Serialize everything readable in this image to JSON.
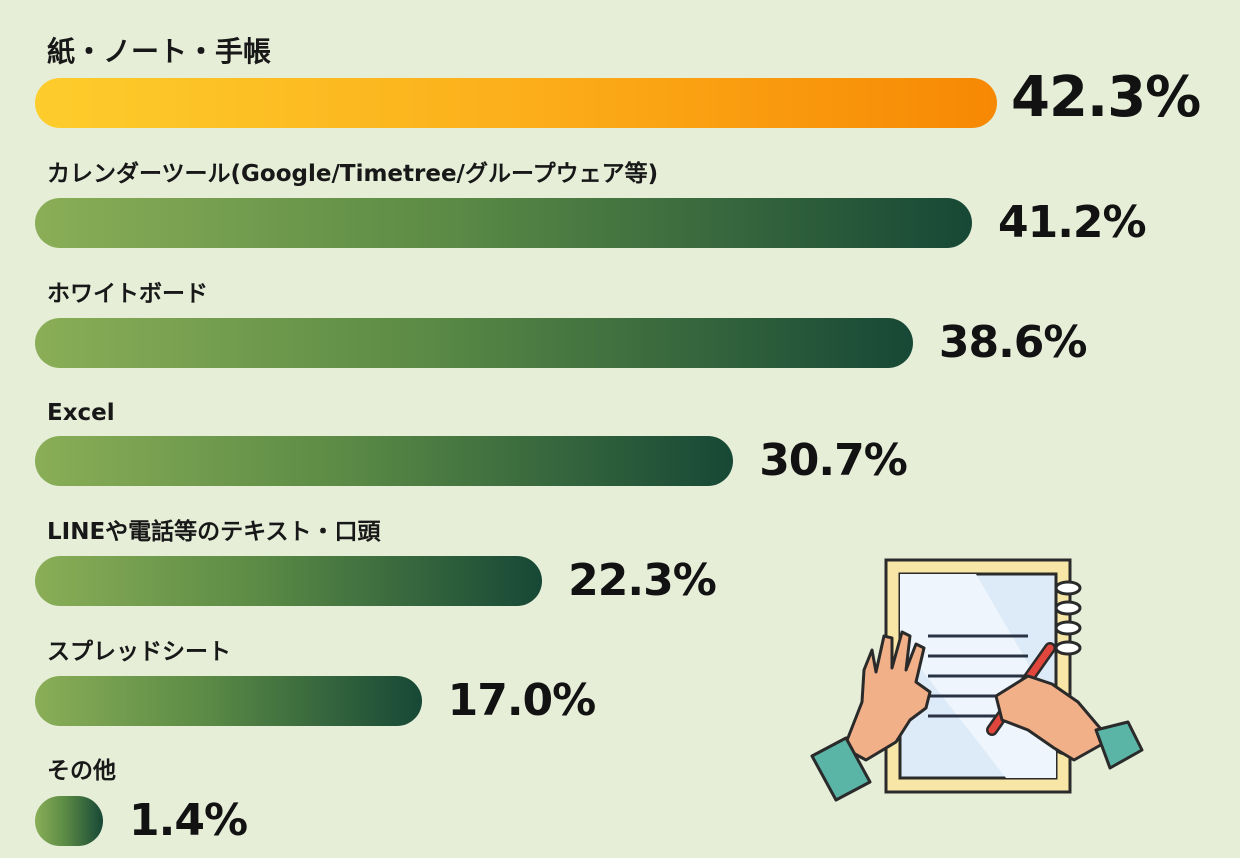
{
  "chart_data": {
    "type": "bar",
    "orientation": "horizontal",
    "categories": [
      "紙・ノート・手帳",
      "カレンダーツール(Google/Timetree/グループウェア等)",
      "ホワイトボード",
      "Excel",
      "LINEや電話等のテキスト・口頭",
      "スプレッドシート",
      "その他"
    ],
    "values": [
      42.3,
      41.2,
      38.6,
      30.7,
      22.3,
      17.0,
      1.4
    ],
    "value_labels": [
      "42.3%",
      "41.2%",
      "38.6%",
      "30.7%",
      "22.3%",
      "17.0%",
      "1.4%"
    ],
    "highlight_index": 0,
    "unit": "%",
    "title": "",
    "xlabel": "",
    "ylabel": "",
    "legend": "none",
    "grid": false
  },
  "colors": {
    "background": "#e6eed8",
    "highlight_bar_start": "#fdcd2c",
    "highlight_bar_end": "#f78804",
    "bar_start": "#8aae57",
    "bar_end": "#174836"
  },
  "illustration": {
    "icon": "notebook-writing-hands-icon"
  }
}
